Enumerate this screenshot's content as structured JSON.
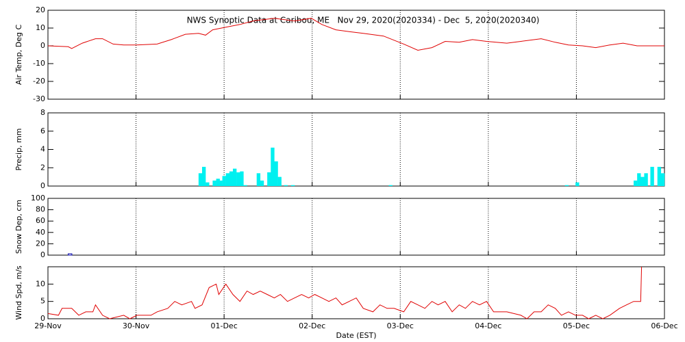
{
  "chart_data": [
    {
      "type": "line",
      "title": "NWS Synoptic Data at Caribou, ME   Nov 29, 2020(2020334) - Dec  5, 2020(2020340)",
      "ylabel": "Air Temp, Deg C",
      "color": "#e00000",
      "xlim": [
        0,
        7
      ],
      "xticks": [
        0,
        1,
        2,
        3,
        4,
        5,
        6,
        7
      ],
      "ylim": [
        -30,
        20
      ],
      "yticks": [
        -30,
        -20,
        -10,
        0,
        10,
        20
      ],
      "grid": true,
      "x": [
        0,
        0.23,
        0.27,
        0.39,
        0.54,
        0.62,
        0.74,
        0.86,
        1.01,
        1.24,
        1.4,
        1.56,
        1.71,
        1.79,
        1.87,
        2.02,
        2.18,
        2.33,
        2.57,
        2.8,
        2.99,
        3.11,
        3.27,
        3.42,
        3.58,
        3.81,
        4.04,
        4.2,
        4.36,
        4.51,
        4.67,
        4.82,
        4.98,
        5.21,
        5.37,
        5.6,
        5.76,
        5.91,
        6.07,
        6.22,
        6.38,
        6.53,
        6.69,
        7
      ],
      "values": [
        0,
        -0.5,
        -1.5,
        1.5,
        4,
        4,
        1,
        0.5,
        0.5,
        1,
        3.5,
        6.5,
        7,
        6,
        9,
        10.5,
        12,
        14,
        15.5,
        14,
        15.5,
        12,
        9,
        8,
        7,
        5.5,
        1,
        -2.5,
        -1,
        2.5,
        2,
        3.5,
        2.5,
        1.5,
        2.5,
        4,
        2,
        0.5,
        0,
        -1,
        0.5,
        1.5,
        0,
        0
      ]
    },
    {
      "type": "bar",
      "ylabel": "Precip, mm",
      "color": "#00f0f0",
      "style": "filled",
      "xlim": [
        0,
        7
      ],
      "xticks": [
        0,
        1,
        2,
        3,
        4,
        5,
        6,
        7
      ],
      "ylim": [
        0,
        8
      ],
      "yticks": [
        0,
        2,
        4,
        6,
        8
      ],
      "grid": true,
      "x": [
        1.71,
        1.75,
        1.79,
        1.87,
        1.91,
        1.94,
        1.98,
        2.02,
        2.06,
        2.1,
        2.14,
        2.18,
        2.22,
        2.37,
        2.41,
        2.49,
        2.53,
        2.57,
        2.61,
        2.68,
        2.76,
        3.87,
        5.87,
        5.99,
        6.65,
        6.69,
        6.73,
        6.77,
        6.84,
        6.92,
        6.96
      ],
      "values": [
        1.4,
        2.1,
        0.4,
        0.6,
        0.8,
        0.6,
        1.1,
        1.4,
        1.6,
        1.9,
        1.5,
        1.6,
        0.1,
        1.4,
        0.6,
        1.5,
        4.2,
        2.7,
        1.0,
        0.1,
        0.1,
        0.1,
        0.1,
        0.4,
        0.6,
        1.4,
        1.0,
        1.4,
        2.1,
        2.1,
        1.4
      ]
    },
    {
      "type": "bar",
      "ylabel": "Snow Dep, cm",
      "color": "#0000aa",
      "style": "outline",
      "xlim": [
        0,
        7
      ],
      "xticks": [
        0,
        1,
        2,
        3,
        4,
        5,
        6,
        7
      ],
      "ylim": [
        0,
        100
      ],
      "yticks": [
        0,
        20,
        40,
        60,
        80,
        100
      ],
      "grid": true,
      "x": [
        0.23
      ],
      "values": [
        1
      ]
    },
    {
      "type": "line",
      "ylabel": "Wind Spd, m/s",
      "xlabel": "Date (EST)",
      "color": "#e00000",
      "xlim": [
        0,
        7
      ],
      "xticks": [
        {
          "value": 0,
          "label": "29-Nov"
        },
        {
          "value": 1,
          "label": "30-Nov"
        },
        {
          "value": 2,
          "label": "01-Dec"
        },
        {
          "value": 3,
          "label": "02-Dec"
        },
        {
          "value": 4,
          "label": "03-Dec"
        },
        {
          "value": 5,
          "label": "04-Dec"
        },
        {
          "value": 6,
          "label": "05-Dec"
        },
        {
          "value": 7,
          "label": "06-Dec"
        }
      ],
      "ylim": [
        0,
        15
      ],
      "yticks": [
        0,
        5,
        10
      ],
      "grid": true,
      "x": [
        0,
        0.12,
        0.16,
        0.27,
        0.35,
        0.43,
        0.51,
        0.54,
        0.62,
        0.7,
        0.86,
        0.93,
        1.01,
        1.17,
        1.24,
        1.36,
        1.44,
        1.52,
        1.63,
        1.67,
        1.75,
        1.83,
        1.91,
        1.94,
        2.02,
        2.1,
        2.18,
        2.26,
        2.33,
        2.41,
        2.49,
        2.57,
        2.64,
        2.72,
        2.8,
        2.88,
        2.96,
        3.03,
        3.11,
        3.19,
        3.27,
        3.34,
        3.42,
        3.5,
        3.58,
        3.69,
        3.77,
        3.85,
        3.93,
        4.04,
        4.12,
        4.2,
        4.28,
        4.36,
        4.43,
        4.51,
        4.59,
        4.67,
        4.74,
        4.82,
        4.9,
        4.98,
        5.06,
        5.21,
        5.37,
        5.44,
        5.52,
        5.6,
        5.68,
        5.76,
        5.83,
        5.91,
        5.99,
        6.07,
        6.14,
        6.22,
        6.3,
        6.38,
        6.49,
        6.57,
        6.65,
        6.73,
        6.74
      ],
      "values": [
        1.5,
        1,
        3,
        3,
        1,
        2,
        2,
        4,
        1,
        0,
        1,
        0,
        1,
        1,
        2,
        3,
        5,
        4,
        5,
        3,
        4,
        9,
        10,
        7,
        10,
        7,
        5,
        8,
        7,
        8,
        7,
        6,
        7,
        5,
        6,
        7,
        6,
        7,
        6,
        5,
        6,
        4,
        5,
        6,
        3,
        2,
        4,
        3,
        3,
        2,
        5,
        4,
        3,
        5,
        4,
        5,
        2,
        4,
        3,
        5,
        4,
        5,
        2,
        2,
        1,
        0,
        2,
        2,
        4,
        3,
        1,
        2,
        1,
        1,
        0,
        1,
        0,
        1,
        3,
        4,
        5,
        5,
        15
      ]
    }
  ]
}
